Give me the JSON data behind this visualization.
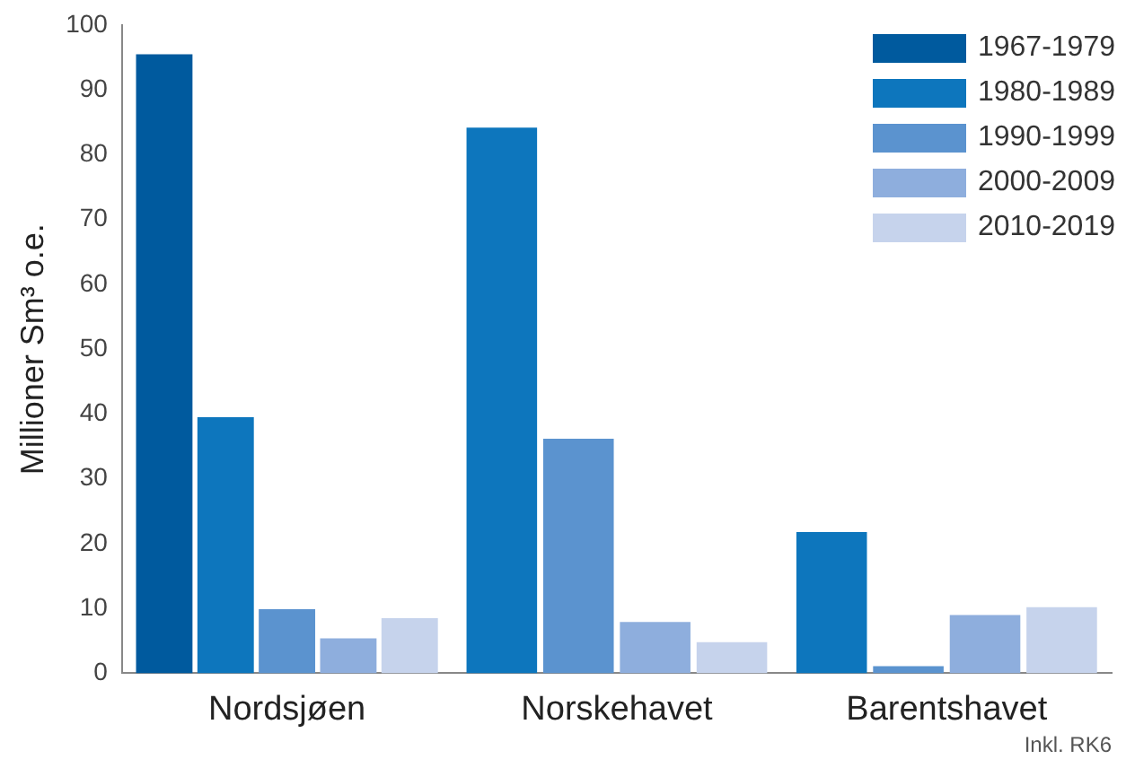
{
  "chart_data": {
    "type": "bar",
    "ylabel": "Millioner Sm³ o.e.",
    "categories": [
      "Nordsjøen",
      "Norskehavet",
      "Barentshavet"
    ],
    "series": [
      {
        "name": "1967-1979",
        "color": "#005a9e",
        "values": [
          95.5,
          null,
          null
        ]
      },
      {
        "name": "1980-1989",
        "color": "#0d76bd",
        "values": [
          39.5,
          84.2,
          21.8
        ]
      },
      {
        "name": "1990-1999",
        "color": "#5b93cf",
        "values": [
          9.9,
          36.2,
          1.1
        ]
      },
      {
        "name": "2000-2009",
        "color": "#8eaedd",
        "values": [
          5.4,
          7.9,
          9.0
        ]
      },
      {
        "name": "2010-2019",
        "color": "#c6d3ec",
        "values": [
          8.5,
          4.8,
          10.2
        ]
      }
    ],
    "ylim": [
      0,
      100
    ],
    "yticks": [
      0,
      10,
      20,
      30,
      40,
      50,
      60,
      70,
      80,
      90,
      100
    ],
    "grid": false,
    "legend": "top right",
    "annotations": [
      "Inkl. RK6"
    ]
  }
}
